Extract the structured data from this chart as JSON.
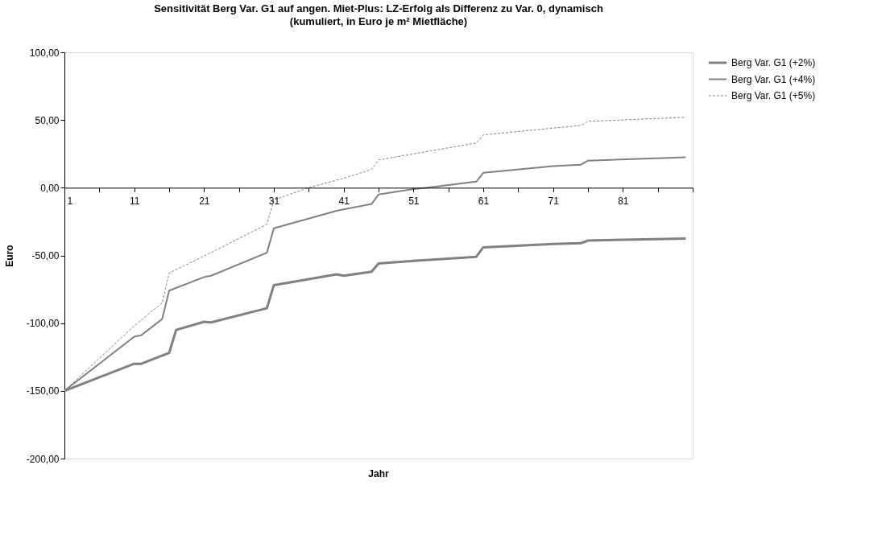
{
  "chart_data": {
    "type": "line",
    "title": "Sensitivität Berg Var. G1 auf angen. Miet-Plus: LZ-Erfolg als Differenz zu Var. 0, dynamisch",
    "subtitle": "(kumuliert, in Euro je m² Mietfläche)",
    "xlabel": "Jahr",
    "ylabel": "Euro",
    "xlim": [
      1,
      91
    ],
    "xticks": [
      1,
      {
        "value": 6,
        "label": null
      },
      11,
      {
        "value": 16,
        "label": null
      },
      21,
      {
        "value": 26,
        "label": null
      },
      31,
      {
        "value": 36,
        "label": null
      },
      41,
      {
        "value": 46,
        "label": null
      },
      51,
      {
        "value": 56,
        "label": null
      },
      61,
      {
        "value": 66,
        "label": null
      },
      71,
      {
        "value": 76,
        "label": null
      },
      81,
      {
        "value": 86,
        "label": null
      },
      {
        "value": 91,
        "label": null
      }
    ],
    "ylim": [
      -200,
      100
    ],
    "yticks": [
      {
        "value": -200,
        "label": "-200,00"
      },
      {
        "value": -150,
        "label": "-150,00"
      },
      {
        "value": -100,
        "label": "-100,00"
      },
      {
        "value": -50,
        "label": "-50,00"
      },
      {
        "value": 0,
        "label": "0,00"
      },
      {
        "value": 50,
        "label": "50,00"
      },
      {
        "value": 100,
        "label": "100,00"
      }
    ],
    "grid": false,
    "legend": "right",
    "marker": "none",
    "series": [
      {
        "name": "Berg Var. G1 (+2%)",
        "color": "#808080",
        "line_style": "solid",
        "x": [
          1,
          11,
          12,
          16,
          17,
          21,
          22,
          30,
          31,
          40,
          41,
          45,
          46,
          51,
          60,
          61,
          71,
          75,
          76,
          90
        ],
        "values": [
          -150,
          -130,
          -130,
          -122,
          -105,
          -99,
          -99.5,
          -89,
          -72,
          -64,
          -65,
          -62,
          -56,
          -54,
          -51,
          -44,
          -41.5,
          -41,
          -39,
          -37.5
        ]
      },
      {
        "name": "Berg Var. G1 (+4%)",
        "color": "#808080",
        "line_style": "solid",
        "x": [
          1,
          11,
          12,
          15,
          16,
          21,
          22,
          30,
          31,
          40,
          41,
          45,
          46,
          51,
          53,
          60,
          61,
          71,
          75,
          76,
          90
        ],
        "values": [
          -150,
          -110,
          -109,
          -97,
          -76,
          -66,
          -65,
          -48,
          -30,
          -17,
          -16,
          -12,
          -5,
          -1,
          0,
          4.5,
          11,
          16,
          17,
          20,
          22.5
        ]
      },
      {
        "name": "Berg Var. G1 (+5%)",
        "color": "#808080",
        "line_style": "dotted",
        "x": [
          1,
          11,
          15,
          16,
          21,
          30,
          31,
          36,
          41,
          45,
          46,
          51,
          60,
          61,
          71,
          75,
          76,
          90
        ],
        "values": [
          -150,
          -102,
          -85,
          -63,
          -50.5,
          -27,
          -9,
          0,
          7,
          13.5,
          20.5,
          25,
          33,
          39,
          44,
          46,
          49,
          52
        ]
      }
    ]
  }
}
